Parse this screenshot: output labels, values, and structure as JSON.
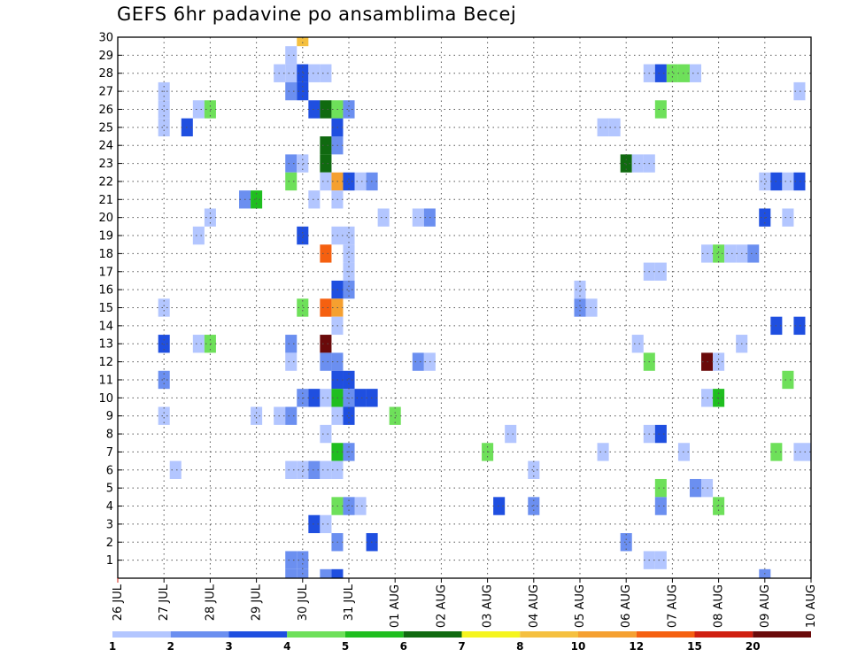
{
  "chart_data": {
    "type": "heatmap",
    "title": "GEFS 6hr padavine po ansamblima Becej",
    "x_tick_labels": [
      "26 JUL",
      "27 JUL",
      "28 JUL",
      "29 JUL",
      "30 JUL",
      "31 JUL",
      "01 AUG",
      "02 AUG",
      "03 AUG",
      "04 AUG",
      "05 AUG",
      "06 AUG",
      "07 AUG",
      "08 AUG",
      "09 AUG",
      "10 AUG"
    ],
    "y_tick_labels": [
      "1",
      "2",
      "3",
      "4",
      "5",
      "6",
      "7",
      "8",
      "9",
      "10",
      "11",
      "12",
      "13",
      "14",
      "15",
      "16",
      "17",
      "18",
      "19",
      "20",
      "21",
      "22",
      "23",
      "24",
      "25",
      "26",
      "27",
      "28",
      "29",
      "30"
    ],
    "xlim": [
      0,
      60
    ],
    "ylim": [
      0,
      30
    ],
    "grid": true,
    "legend": {
      "position": "bottom",
      "labels": [
        "1",
        "2",
        "3",
        "4",
        "5",
        "6",
        "7",
        "8",
        "10",
        "12",
        "15",
        "20"
      ],
      "colors": [
        "#b3c6ff",
        "#6b8ff0",
        "#1f4fe0",
        "#6ee05a",
        "#1fbe1f",
        "#106a10",
        "#f5f51f",
        "#f5c040",
        "#f5a030",
        "#f56010",
        "#d02010",
        "#6a0a0a"
      ]
    },
    "cells": [
      [
        16,
        30,
        9
      ],
      [
        15,
        29,
        1
      ],
      [
        14,
        28,
        1
      ],
      [
        15,
        28,
        1
      ],
      [
        16,
        28,
        3
      ],
      [
        17,
        28,
        1
      ],
      [
        18,
        28,
        1
      ],
      [
        46,
        28,
        1
      ],
      [
        47,
        28,
        3
      ],
      [
        48,
        28,
        4
      ],
      [
        49,
        28,
        4
      ],
      [
        50,
        28,
        1
      ],
      [
        4,
        27,
        1
      ],
      [
        15,
        27,
        2
      ],
      [
        16,
        27,
        3
      ],
      [
        59,
        27,
        1
      ],
      [
        4,
        26,
        1
      ],
      [
        7,
        26,
        1
      ],
      [
        8,
        26,
        4
      ],
      [
        17,
        26,
        3
      ],
      [
        18,
        26,
        6
      ],
      [
        19,
        26,
        4
      ],
      [
        20,
        26,
        2
      ],
      [
        47,
        26,
        4
      ],
      [
        4,
        25,
        1
      ],
      [
        6,
        25,
        3
      ],
      [
        19,
        25,
        3
      ],
      [
        42,
        25,
        1
      ],
      [
        43,
        25,
        1
      ],
      [
        18,
        24,
        6
      ],
      [
        19,
        24,
        2
      ],
      [
        15,
        23,
        2
      ],
      [
        16,
        23,
        1
      ],
      [
        18,
        23,
        6
      ],
      [
        44,
        23,
        6
      ],
      [
        45,
        23,
        1
      ],
      [
        46,
        23,
        1
      ],
      [
        15,
        22,
        4
      ],
      [
        18,
        22,
        1
      ],
      [
        19,
        22,
        10
      ],
      [
        20,
        22,
        3
      ],
      [
        21,
        22,
        1
      ],
      [
        22,
        22,
        2
      ],
      [
        56,
        22,
        1
      ],
      [
        57,
        22,
        3
      ],
      [
        58,
        22,
        1
      ],
      [
        59,
        22,
        3
      ],
      [
        11,
        21,
        2
      ],
      [
        12,
        21,
        5
      ],
      [
        17,
        21,
        1
      ],
      [
        19,
        21,
        1
      ],
      [
        8,
        20,
        1
      ],
      [
        23,
        20,
        1
      ],
      [
        26,
        20,
        1
      ],
      [
        27,
        20,
        2
      ],
      [
        56,
        20,
        3
      ],
      [
        58,
        20,
        1
      ],
      [
        7,
        19,
        1
      ],
      [
        16,
        19,
        3
      ],
      [
        19,
        19,
        1
      ],
      [
        20,
        19,
        1
      ],
      [
        18,
        18,
        12
      ],
      [
        20,
        18,
        1
      ],
      [
        51,
        18,
        1
      ],
      [
        52,
        18,
        4
      ],
      [
        53,
        18,
        1
      ],
      [
        54,
        18,
        1
      ],
      [
        55,
        18,
        2
      ],
      [
        20,
        17,
        1
      ],
      [
        46,
        17,
        1
      ],
      [
        47,
        17,
        1
      ],
      [
        19,
        16,
        3
      ],
      [
        20,
        16,
        2
      ],
      [
        40,
        16,
        1
      ],
      [
        4,
        15,
        1
      ],
      [
        16,
        15,
        4
      ],
      [
        18,
        15,
        12
      ],
      [
        19,
        15,
        10
      ],
      [
        40,
        15,
        2
      ],
      [
        41,
        15,
        1
      ],
      [
        19,
        14,
        1
      ],
      [
        57,
        14,
        3
      ],
      [
        59,
        14,
        3
      ],
      [
        4,
        13,
        3
      ],
      [
        7,
        13,
        1
      ],
      [
        8,
        13,
        4
      ],
      [
        15,
        13,
        2
      ],
      [
        18,
        13,
        20
      ],
      [
        45,
        13,
        1
      ],
      [
        54,
        13,
        1
      ],
      [
        15,
        12,
        1
      ],
      [
        18,
        12,
        2
      ],
      [
        19,
        12,
        2
      ],
      [
        26,
        12,
        2
      ],
      [
        27,
        12,
        1
      ],
      [
        46,
        12,
        4
      ],
      [
        51,
        12,
        20
      ],
      [
        52,
        12,
        1
      ],
      [
        4,
        11,
        2
      ],
      [
        19,
        11,
        3
      ],
      [
        20,
        11,
        3
      ],
      [
        58,
        11,
        4
      ],
      [
        16,
        10,
        2
      ],
      [
        17,
        10,
        3
      ],
      [
        18,
        10,
        1
      ],
      [
        19,
        10,
        5
      ],
      [
        20,
        10,
        2
      ],
      [
        21,
        10,
        3
      ],
      [
        22,
        10,
        3
      ],
      [
        51,
        10,
        1
      ],
      [
        52,
        10,
        5
      ],
      [
        4,
        9,
        1
      ],
      [
        12,
        9,
        1
      ],
      [
        14,
        9,
        1
      ],
      [
        15,
        9,
        2
      ],
      [
        19,
        9,
        1
      ],
      [
        20,
        9,
        3
      ],
      [
        24,
        9,
        4
      ],
      [
        18,
        8,
        1
      ],
      [
        34,
        8,
        1
      ],
      [
        46,
        8,
        1
      ],
      [
        47,
        8,
        3
      ],
      [
        19,
        7,
        5
      ],
      [
        20,
        7,
        2
      ],
      [
        32,
        7,
        4
      ],
      [
        42,
        7,
        1
      ],
      [
        49,
        7,
        1
      ],
      [
        57,
        7,
        4
      ],
      [
        59,
        7,
        1
      ],
      [
        60,
        7,
        1
      ],
      [
        5,
        6,
        1
      ],
      [
        15,
        6,
        1
      ],
      [
        16,
        6,
        1
      ],
      [
        17,
        6,
        2
      ],
      [
        18,
        6,
        1
      ],
      [
        19,
        6,
        1
      ],
      [
        36,
        6,
        1
      ],
      [
        47,
        5,
        4
      ],
      [
        50,
        5,
        2
      ],
      [
        51,
        5,
        1
      ],
      [
        19,
        4,
        4
      ],
      [
        20,
        4,
        2
      ],
      [
        21,
        4,
        1
      ],
      [
        33,
        4,
        3
      ],
      [
        36,
        4,
        2
      ],
      [
        47,
        4,
        2
      ],
      [
        52,
        4,
        4
      ],
      [
        17,
        3,
        3
      ],
      [
        18,
        3,
        1
      ],
      [
        19,
        2,
        2
      ],
      [
        22,
        2,
        3
      ],
      [
        44,
        2,
        2
      ],
      [
        15,
        1,
        2
      ],
      [
        16,
        1,
        2
      ],
      [
        46,
        1,
        1
      ],
      [
        47,
        1,
        1
      ],
      [
        15,
        0,
        2
      ],
      [
        16,
        0,
        2
      ],
      [
        18,
        0,
        2
      ],
      [
        19,
        0,
        3
      ],
      [
        56,
        0,
        2
      ]
    ]
  }
}
